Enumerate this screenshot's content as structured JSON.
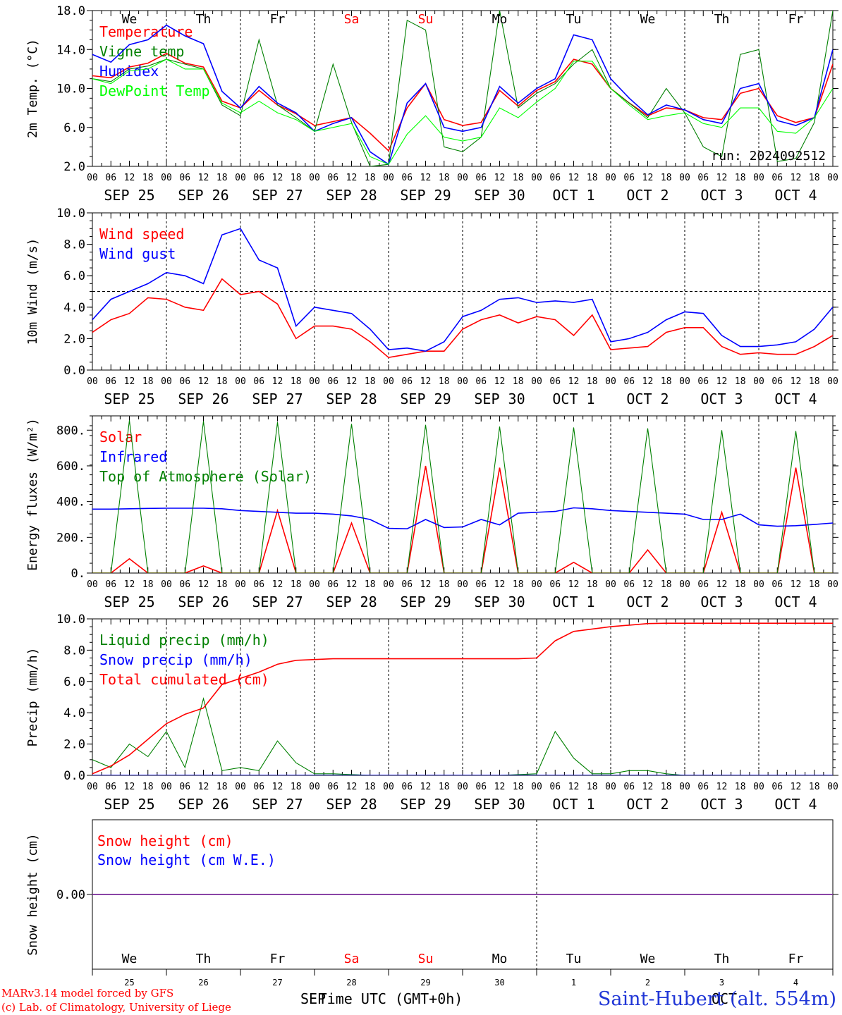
{
  "footer": {
    "model": "MARv3.14 model forced by GFS",
    "credit": "(c) Lab. of Climatology, University of Liege",
    "station": "Saint-Hubert (alt. 554m)",
    "xlabel": "Time UTC (GMT+0h)",
    "month_start": "SEP",
    "month_end": "OCT"
  },
  "time_axis": {
    "hour_ticks": [
      "00",
      "06",
      "12",
      "18"
    ],
    "dates": [
      "SEP 25",
      "SEP 26",
      "SEP 27",
      "SEP 28",
      "SEP 29",
      "SEP 30",
      "OCT  1",
      "OCT  2",
      "OCT  3",
      "OCT  4"
    ],
    "weekdays": [
      "We",
      "Th",
      "Fr",
      "Sa",
      "Su",
      "Mo",
      "Tu",
      "We",
      "Th",
      "Fr"
    ],
    "weekend_color": "#ff0000",
    "day_numbers": [
      "25",
      "26",
      "27",
      "28",
      "29",
      "30",
      "1",
      "2",
      "3",
      "4"
    ]
  },
  "chart_data": [
    {
      "type": "line",
      "ylabel": "2m Temp. (°C)",
      "ylim": [
        2.0,
        18.0
      ],
      "yticks": [
        "2.0",
        "6.0",
        "10.0",
        "14.0",
        "18.0"
      ],
      "run_label": "run: 2024092512",
      "x_hours": [
        0,
        6,
        12,
        18,
        24,
        30,
        36,
        42,
        48,
        54,
        60,
        66,
        72,
        78,
        84,
        90,
        96,
        102,
        108,
        114,
        120,
        126,
        132,
        138,
        144,
        150,
        156,
        162,
        168,
        174,
        180,
        186,
        192,
        198,
        204,
        210,
        216,
        222,
        228,
        234,
        240
      ],
      "series": [
        {
          "name": "Temperature",
          "color": "#ff0000",
          "values": [
            11.3,
            11.1,
            12.2,
            12.6,
            13.6,
            12.6,
            12.2,
            8.7,
            8.0,
            9.8,
            8.3,
            7.4,
            6.2,
            6.6,
            7.0,
            5.4,
            3.6,
            8.0,
            10.5,
            6.8,
            6.2,
            6.5,
            9.8,
            8.2,
            9.8,
            10.7,
            13.0,
            12.5,
            10.0,
            8.5,
            7.2,
            8.0,
            7.8,
            7.0,
            6.8,
            9.5,
            10.0,
            7.2,
            6.5,
            7.0,
            12.5
          ]
        },
        {
          "name": "Vigne temp",
          "color": "#008000",
          "values": [
            11.0,
            10.7,
            12.0,
            12.3,
            13.0,
            12.5,
            12.0,
            8.3,
            7.2,
            15.0,
            8.3,
            7.0,
            5.6,
            12.5,
            6.5,
            2.0,
            2.2,
            17.0,
            16.0,
            4.0,
            3.5,
            5.0,
            18.0,
            8.0,
            9.5,
            10.5,
            12.5,
            14.0,
            10.0,
            8.5,
            7.0,
            10.0,
            7.5,
            4.0,
            3.0,
            13.5,
            14.0,
            2.5,
            2.8,
            6.5,
            18.0
          ]
        },
        {
          "name": "Humidex",
          "color": "#0000ff",
          "values": [
            13.5,
            12.7,
            14.5,
            15.0,
            16.5,
            15.4,
            14.6,
            9.7,
            8.0,
            10.2,
            8.5,
            7.5,
            5.6,
            6.4,
            7.0,
            3.5,
            2.2,
            8.5,
            10.5,
            6.0,
            5.6,
            6.0,
            10.2,
            8.5,
            10.0,
            11.0,
            15.5,
            15.0,
            11.0,
            9.0,
            7.3,
            8.3,
            7.8,
            6.8,
            6.4,
            10.0,
            10.5,
            6.7,
            6.2,
            7.0,
            14.0
          ]
        },
        {
          "name": "DewPoint Temp",
          "color": "#00ff00",
          "values": [
            11.0,
            10.5,
            11.8,
            12.0,
            13.0,
            12.0,
            12.0,
            8.5,
            7.5,
            8.7,
            7.5,
            6.8,
            5.6,
            6.0,
            6.4,
            3.0,
            2.2,
            5.3,
            7.2,
            5.0,
            4.6,
            5.0,
            8.0,
            7.0,
            8.6,
            10.0,
            12.8,
            12.8,
            10.0,
            8.3,
            6.8,
            7.2,
            7.5,
            6.4,
            6.0,
            8.0,
            8.0,
            5.6,
            5.4,
            7.0,
            10.0
          ]
        }
      ]
    },
    {
      "type": "line",
      "ylabel": "10m Wind (m/s)",
      "ylim": [
        0.0,
        10.0
      ],
      "yticks": [
        "0.0",
        "2.0",
        "4.0",
        "6.0",
        "8.0",
        "10.0"
      ],
      "reference_line": 5.0,
      "x_hours": [
        0,
        6,
        12,
        18,
        24,
        30,
        36,
        42,
        48,
        54,
        60,
        66,
        72,
        78,
        84,
        90,
        96,
        102,
        108,
        114,
        120,
        126,
        132,
        138,
        144,
        150,
        156,
        162,
        168,
        174,
        180,
        186,
        192,
        198,
        204,
        210,
        216,
        222,
        228,
        234,
        240
      ],
      "series": [
        {
          "name": "Wind speed",
          "color": "#ff0000",
          "values": [
            2.4,
            3.2,
            3.6,
            4.6,
            4.5,
            4.0,
            3.8,
            5.8,
            4.8,
            5.0,
            4.2,
            2.0,
            2.8,
            2.8,
            2.6,
            1.8,
            0.8,
            1.0,
            1.2,
            1.2,
            2.6,
            3.2,
            3.5,
            3.0,
            3.4,
            3.2,
            2.2,
            3.5,
            1.3,
            1.4,
            1.5,
            2.4,
            2.7,
            2.7,
            1.5,
            1.0,
            1.1,
            1.0,
            1.0,
            1.5,
            2.2
          ]
        },
        {
          "name": "Wind gust",
          "color": "#0000ff",
          "values": [
            3.2,
            4.5,
            5.0,
            5.5,
            6.2,
            6.0,
            5.5,
            8.6,
            9.0,
            7.0,
            6.5,
            2.8,
            4.0,
            3.8,
            3.6,
            2.6,
            1.3,
            1.4,
            1.2,
            1.8,
            3.4,
            3.8,
            4.5,
            4.6,
            4.3,
            4.4,
            4.3,
            4.5,
            1.8,
            2.0,
            2.4,
            3.2,
            3.7,
            3.6,
            2.2,
            1.5,
            1.5,
            1.6,
            1.8,
            2.6,
            4.0
          ]
        }
      ]
    },
    {
      "type": "line",
      "ylabel": "Energy fluxes (W/m²)",
      "ylim": [
        0,
        880
      ],
      "yticks": [
        "0.",
        "200.",
        "400.",
        "600.",
        "800."
      ],
      "x_hours": [
        0,
        6,
        12,
        18,
        24,
        30,
        36,
        42,
        48,
        54,
        60,
        66,
        72,
        78,
        84,
        90,
        96,
        102,
        108,
        114,
        120,
        126,
        132,
        138,
        144,
        150,
        156,
        162,
        168,
        174,
        180,
        186,
        192,
        198,
        204,
        210,
        216,
        222,
        228,
        234,
        240
      ],
      "series": [
        {
          "name": "Solar",
          "color": "#ff0000",
          "values": [
            0,
            0,
            80,
            0,
            0,
            0,
            40,
            0,
            0,
            0,
            350,
            0,
            0,
            0,
            280,
            0,
            0,
            0,
            600,
            0,
            0,
            0,
            590,
            0,
            0,
            0,
            60,
            0,
            0,
            0,
            130,
            0,
            0,
            0,
            340,
            0,
            0,
            0,
            590,
            0,
            0
          ]
        },
        {
          "name": "Infrared",
          "color": "#0000ff",
          "values": [
            358,
            358,
            360,
            362,
            363,
            363,
            363,
            360,
            350,
            345,
            340,
            335,
            335,
            330,
            320,
            300,
            250,
            248,
            300,
            255,
            258,
            300,
            270,
            335,
            340,
            345,
            365,
            360,
            350,
            345,
            340,
            335,
            330,
            300,
            300,
            330,
            270,
            262,
            265,
            272,
            280
          ]
        },
        {
          "name": "Top of Atmosphere (Solar)",
          "color": "#008000",
          "values": [
            0,
            0,
            855,
            0,
            0,
            0,
            850,
            0,
            0,
            0,
            845,
            0,
            0,
            0,
            835,
            0,
            0,
            0,
            830,
            0,
            0,
            0,
            820,
            0,
            0,
            0,
            815,
            0,
            0,
            0,
            810,
            0,
            0,
            0,
            800,
            0,
            0,
            0,
            795,
            0,
            0
          ]
        }
      ]
    },
    {
      "type": "line",
      "ylabel": "Precip (mm/h)",
      "ylim": [
        0.0,
        10.0
      ],
      "yticks": [
        "0.0",
        "2.0",
        "4.0",
        "6.0",
        "8.0",
        "10.0"
      ],
      "x_hours": [
        0,
        6,
        12,
        18,
        24,
        30,
        36,
        42,
        48,
        54,
        60,
        66,
        72,
        78,
        84,
        90,
        96,
        102,
        108,
        114,
        120,
        126,
        132,
        138,
        144,
        150,
        156,
        162,
        168,
        174,
        180,
        186,
        192,
        198,
        204,
        210,
        216,
        222,
        228,
        234,
        240
      ],
      "series": [
        {
          "name": "Liquid precip (mm/h)",
          "color": "#008000",
          "values": [
            1.0,
            0.5,
            2.0,
            1.2,
            2.8,
            0.5,
            4.9,
            0.3,
            0.5,
            0.3,
            2.2,
            0.8,
            0.1,
            0.1,
            0.05,
            0,
            0,
            0,
            0,
            0,
            0,
            0,
            0,
            0.05,
            0.1,
            2.8,
            1.1,
            0.1,
            0.1,
            0.3,
            0.3,
            0.1,
            0,
            0,
            0,
            0,
            0,
            0,
            0,
            0,
            0
          ]
        },
        {
          "name": "Snow precip (mm/h)",
          "color": "#0000ff",
          "values": [
            0,
            0,
            0,
            0,
            0,
            0,
            0,
            0,
            0,
            0,
            0,
            0,
            0,
            0,
            0,
            0,
            0,
            0,
            0,
            0,
            0,
            0,
            0,
            0,
            0,
            0,
            0,
            0,
            0,
            0,
            0,
            0,
            0,
            0,
            0,
            0,
            0,
            0,
            0,
            0,
            0
          ]
        },
        {
          "name": "Total cumulated (cm)",
          "color": "#ff0000",
          "values": [
            0.1,
            0.6,
            1.3,
            2.3,
            3.3,
            3.9,
            4.3,
            5.8,
            6.2,
            6.6,
            7.1,
            7.35,
            7.4,
            7.45,
            7.45,
            7.45,
            7.45,
            7.45,
            7.45,
            7.45,
            7.45,
            7.45,
            7.45,
            7.45,
            7.5,
            8.6,
            9.2,
            9.35,
            9.5,
            9.6,
            9.7,
            9.72,
            9.72,
            9.72,
            9.72,
            9.72,
            9.72,
            9.72,
            9.72,
            9.72,
            9.72
          ]
        }
      ]
    },
    {
      "type": "line",
      "ylabel": "Snow height (cm)",
      "yticks": [
        "0.00"
      ],
      "x_hours": [
        0,
        240
      ],
      "series": [
        {
          "name": "Snow height (cm)",
          "color": "#ff0000",
          "values": [
            0,
            0
          ]
        },
        {
          "name": "Snow height (cm W.E.)",
          "color": "#0000ff",
          "values": [
            0,
            0
          ]
        }
      ]
    }
  ]
}
